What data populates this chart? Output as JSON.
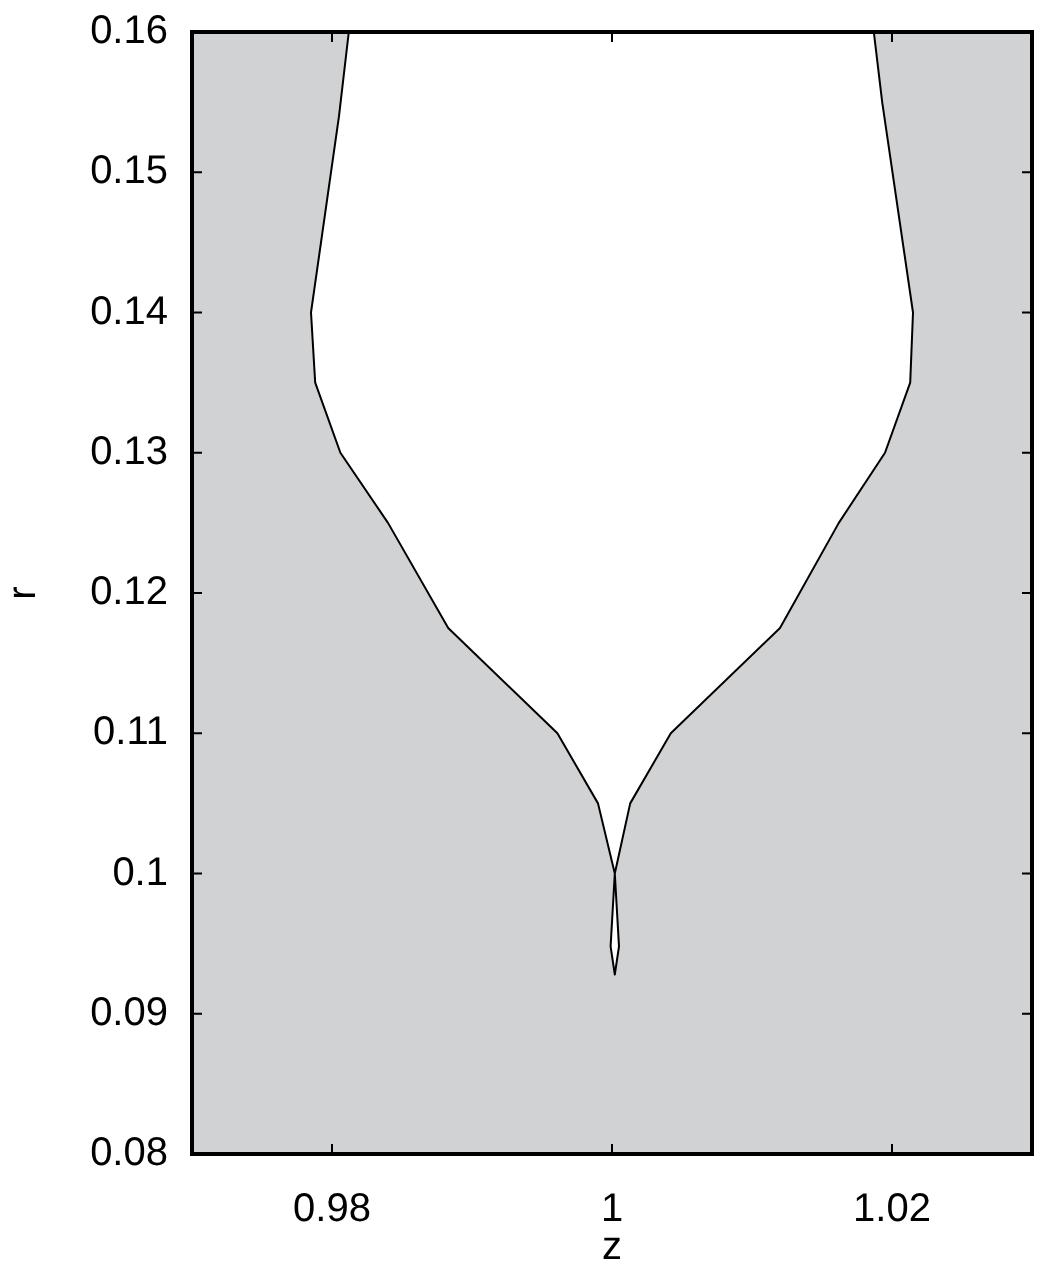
{
  "chart_data": {
    "type": "line",
    "xlabel": "z",
    "ylabel": "r",
    "xlim": [
      0.97,
      1.03
    ],
    "xticks": [
      0.98,
      1,
      1.02
    ],
    "ylim": [
      0.08,
      0.16
    ],
    "yticks": [
      0.08,
      0.09,
      0.1,
      0.11,
      0.12,
      0.13,
      0.14,
      0.15,
      0.16
    ],
    "marker": "none",
    "series": [
      {
        "color": "#000000",
        "x": [
          0.9812,
          0.9805,
          0.9785,
          0.9788,
          0.9806,
          0.984,
          0.9883,
          0.9961,
          0.999,
          1.0002,
          0.9999,
          1.0002,
          1.0005,
          1.0002,
          1.0013,
          1.0042,
          1.012,
          1.0162,
          1.0195,
          1.0213,
          1.0215,
          1.0193,
          1.0187
        ],
        "values": [
          0.16,
          0.154,
          0.14,
          0.135,
          0.13,
          0.125,
          0.1175,
          0.11,
          0.105,
          0.1,
          0.0948,
          0.0928,
          0.0948,
          0.1,
          0.105,
          0.11,
          0.1175,
          0.125,
          0.13,
          0.135,
          0.14,
          0.155,
          0.16
        ]
      }
    ]
  }
}
